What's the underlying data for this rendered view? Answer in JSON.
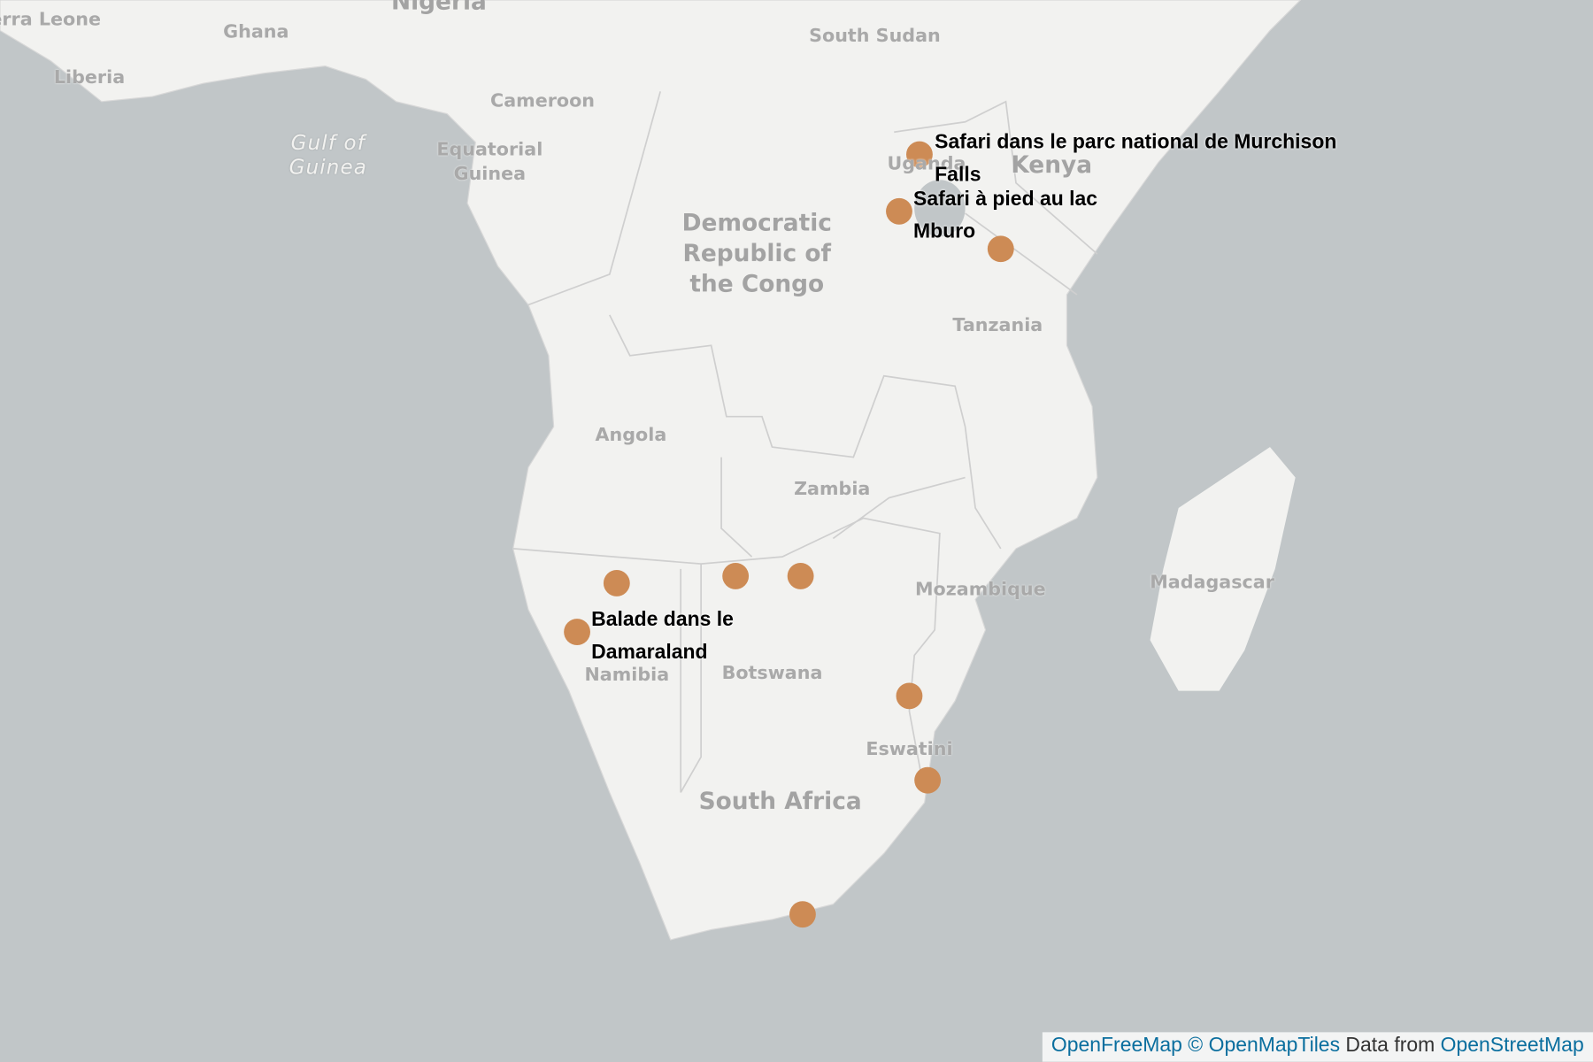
{
  "country_labels": [
    "Sierra Leone",
    "Ghana",
    "Liberia",
    "Nigeria",
    "South Sudan",
    "Cameroon",
    "Gulf of Guinea",
    "Equatorial Guinea",
    "Uganda",
    "Kenya",
    "Democratic Republic of the Congo",
    "Tanzania",
    "Angola",
    "Zambia",
    "Mozambique",
    "Madagascar",
    "Namibia",
    "Botswana",
    "Eswatini",
    "South Africa"
  ],
  "marker_labels": [
    "Safari dans le parc national de Murchison Falls",
    "Safari à pied au lac Mburo",
    "Balade dans le Damaraland"
  ],
  "attribution": {
    "link_1": "OpenFreeMap",
    "link_2": "© OpenMapTiles",
    "text": "Data from",
    "link_3": "OpenStreetMap"
  }
}
